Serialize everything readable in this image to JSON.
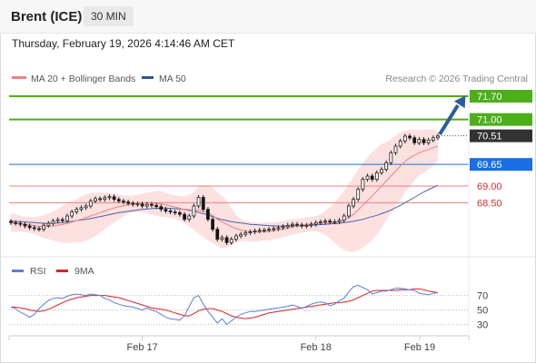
{
  "header": {
    "instrument": "Brent (ICE)",
    "timeframe": "30 MIN",
    "timestamp": "Thursday, February 19, 2026 4:14:46 AM CET"
  },
  "legend": {
    "items": [
      {
        "label": "MA 20 + Bollinger Bands",
        "color": "#f08080"
      },
      {
        "label": "MA 50",
        "color": "#2f5597"
      }
    ],
    "credit": "Research © 2026 Trading Central"
  },
  "colors": {
    "up": "#ffffff",
    "down": "#111111",
    "resistance": "#4caf1a",
    "support": "#f08080",
    "pivot": "#1a6ee6",
    "ma20": "#f08080",
    "ma50": "#4a62a8",
    "bollinger": "#fde0e0",
    "arrow": "#2a5c9e",
    "rsi": "#5b7fd6",
    "rsi_ma": "#e02020"
  },
  "chart_data": [
    {
      "type": "candlestick",
      "y_range": [
        66.9,
        72.0
      ],
      "x_labels": [
        "Feb 17",
        "Feb 18",
        "Feb 19"
      ],
      "levels": [
        {
          "value": 71.7,
          "label": "71.70",
          "kind": "resistance"
        },
        {
          "value": 71.0,
          "label": "71.00",
          "kind": "resistance"
        },
        {
          "value": 70.51,
          "label": "70.51",
          "kind": "last"
        },
        {
          "value": 69.65,
          "label": "69.65",
          "kind": "pivot"
        },
        {
          "value": 69.0,
          "label": "69.00",
          "kind": "support"
        },
        {
          "value": 68.5,
          "label": "68.50",
          "kind": "support"
        }
      ],
      "close": [
        67.9,
        67.88,
        67.85,
        67.8,
        67.75,
        67.72,
        67.7,
        67.82,
        67.88,
        67.95,
        67.99,
        67.96,
        68.1,
        68.22,
        68.3,
        68.35,
        68.4,
        68.55,
        68.62,
        68.6,
        68.65,
        68.68,
        68.6,
        68.55,
        68.52,
        68.48,
        68.45,
        68.46,
        68.4,
        68.45,
        68.42,
        68.38,
        68.3,
        68.25,
        68.22,
        68.2,
        68.15,
        68.0,
        68.1,
        68.4,
        68.66,
        68.3,
        68.0,
        67.7,
        67.4,
        67.45,
        67.3,
        67.4,
        67.5,
        67.55,
        67.6,
        67.62,
        67.65,
        67.67,
        67.68,
        67.7,
        67.72,
        67.75,
        67.78,
        67.82,
        67.85,
        67.83,
        67.8,
        67.82,
        67.85,
        67.9,
        67.92,
        67.95,
        67.92,
        67.93,
        67.97,
        68.1,
        68.4,
        68.6,
        68.9,
        69.2,
        69.3,
        69.2,
        69.4,
        69.5,
        69.7,
        70.0,
        70.2,
        70.35,
        70.5,
        70.45,
        70.3,
        70.4,
        70.3,
        70.38,
        70.45,
        70.5
      ],
      "ma20": [
        67.9,
        67.89,
        67.87,
        67.85,
        67.83,
        67.81,
        67.79,
        67.78,
        67.79,
        67.8,
        67.82,
        67.85,
        67.88,
        67.92,
        67.96,
        68.0,
        68.05,
        68.1,
        68.15,
        68.2,
        68.25,
        68.3,
        68.34,
        68.38,
        68.41,
        68.44,
        68.46,
        68.48,
        68.49,
        68.5,
        68.49,
        68.48,
        68.46,
        68.43,
        68.4,
        68.37,
        68.33,
        68.29,
        68.26,
        68.25,
        68.28,
        68.25,
        68.2,
        68.12,
        68.0,
        67.92,
        67.85,
        67.78,
        67.72,
        67.68,
        67.65,
        67.63,
        67.62,
        67.62,
        67.63,
        67.64,
        67.66,
        67.68,
        67.71,
        67.74,
        67.77,
        67.8,
        67.82,
        67.84,
        67.86,
        67.87,
        67.88,
        67.89,
        67.89,
        67.9,
        67.92,
        67.97,
        68.05,
        68.15,
        68.28,
        68.42,
        68.56,
        68.7,
        68.85,
        69.0,
        69.15,
        69.3,
        69.45,
        69.6,
        69.74,
        69.85,
        69.93,
        70.0,
        70.05,
        70.1,
        70.15,
        70.2
      ],
      "ma50": [
        67.95,
        67.94,
        67.93,
        67.92,
        67.91,
        67.9,
        67.89,
        67.88,
        67.88,
        67.88,
        67.89,
        67.9,
        67.92,
        67.94,
        67.96,
        67.98,
        68.0,
        68.02,
        68.05,
        68.08,
        68.11,
        68.14,
        68.17,
        68.2,
        68.22,
        68.24,
        68.26,
        68.28,
        68.3,
        68.31,
        68.32,
        68.33,
        68.34,
        68.34,
        68.33,
        68.32,
        68.31,
        68.3,
        68.28,
        68.25,
        68.21,
        68.17,
        68.13,
        68.08,
        68.03,
        67.99,
        67.96,
        67.93,
        67.91,
        67.89,
        67.87,
        67.85,
        67.84,
        67.83,
        67.82,
        67.81,
        67.8,
        67.8,
        67.8,
        67.8,
        67.8,
        67.8,
        67.8,
        67.81,
        67.82,
        67.83,
        67.84,
        67.85,
        67.86,
        67.87,
        67.88,
        67.9,
        67.92,
        67.94,
        67.97,
        68.0,
        68.04,
        68.08,
        68.12,
        68.17,
        68.22,
        68.28,
        68.35,
        68.42,
        68.5,
        68.58,
        68.66,
        68.74,
        68.82,
        68.89,
        68.96,
        69.02
      ]
    },
    {
      "type": "line",
      "title": "RSI",
      "y_range": [
        17,
        87
      ],
      "ticks": [
        70,
        50,
        30
      ],
      "series": [
        {
          "name": "RSI",
          "color": "#5b7fd6",
          "values": [
            54,
            52,
            47,
            44,
            40,
            44,
            52,
            58,
            63,
            66,
            67,
            66,
            69,
            71,
            72,
            71,
            70,
            72,
            71,
            70,
            66,
            64,
            60,
            58,
            56,
            55,
            54,
            52,
            50,
            53,
            50,
            48,
            44,
            40,
            38,
            37,
            36,
            42,
            55,
            67,
            70,
            58,
            48,
            40,
            32,
            38,
            30,
            35,
            40,
            44,
            46,
            48,
            48,
            49,
            50,
            51,
            52,
            53,
            54,
            55,
            57,
            55,
            52,
            55,
            58,
            60,
            61,
            60,
            56,
            58,
            63,
            66,
            75,
            82,
            84,
            81,
            78,
            72,
            74,
            76,
            76,
            78,
            80,
            80,
            79,
            78,
            77,
            73,
            72,
            71,
            73,
            74
          ]
        },
        {
          "name": "9MA",
          "color": "#e02020",
          "values": [
            54,
            54,
            53,
            52,
            50,
            49,
            48,
            49,
            51,
            54,
            57,
            60,
            63,
            65,
            67,
            68,
            69,
            70,
            70,
            70,
            70,
            69,
            68,
            67,
            65,
            63,
            61,
            59,
            57,
            55,
            53,
            52,
            51,
            50,
            48,
            46,
            44,
            42,
            42,
            45,
            49,
            51,
            52,
            52,
            50,
            48,
            45,
            42,
            40,
            39,
            38,
            39,
            40,
            42,
            44,
            46,
            47,
            48,
            49,
            50,
            51,
            52,
            53,
            54,
            55,
            56,
            57,
            58,
            59,
            60,
            60,
            61,
            62,
            64,
            67,
            70,
            73,
            76,
            77,
            77,
            77,
            77,
            77,
            78,
            78,
            78,
            79,
            79,
            78,
            76,
            75,
            74
          ]
        }
      ]
    }
  ]
}
